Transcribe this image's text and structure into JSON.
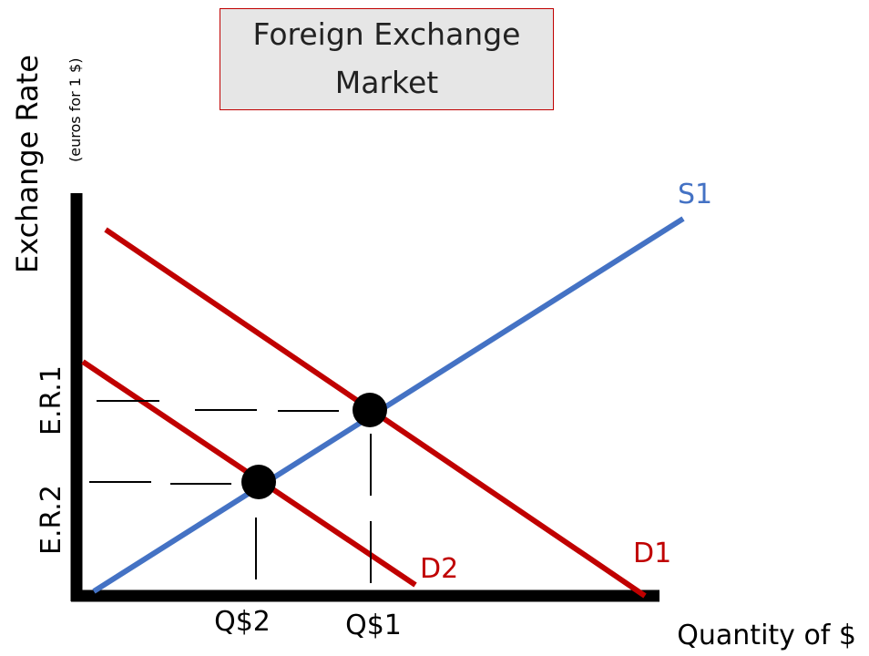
{
  "title": {
    "line1": "Foreign Exchange",
    "line2": "Market"
  },
  "axes": {
    "y_label": "Exchange Rate",
    "y_sublabel": "(euros for 1 $)",
    "x_label": "Quantity of $"
  },
  "levels": {
    "er1": "E.R.1",
    "er2": "E.R.2",
    "q1": "Q$1",
    "q2": "Q$2"
  },
  "curves": {
    "supply": {
      "label": "S1",
      "color": "#4472c4"
    },
    "demand1": {
      "label": "D1",
      "color": "#c00000"
    },
    "demand2": {
      "label": "D2",
      "color": "#c00000"
    }
  },
  "colors": {
    "axis": "#000000",
    "point": "#000000"
  }
}
